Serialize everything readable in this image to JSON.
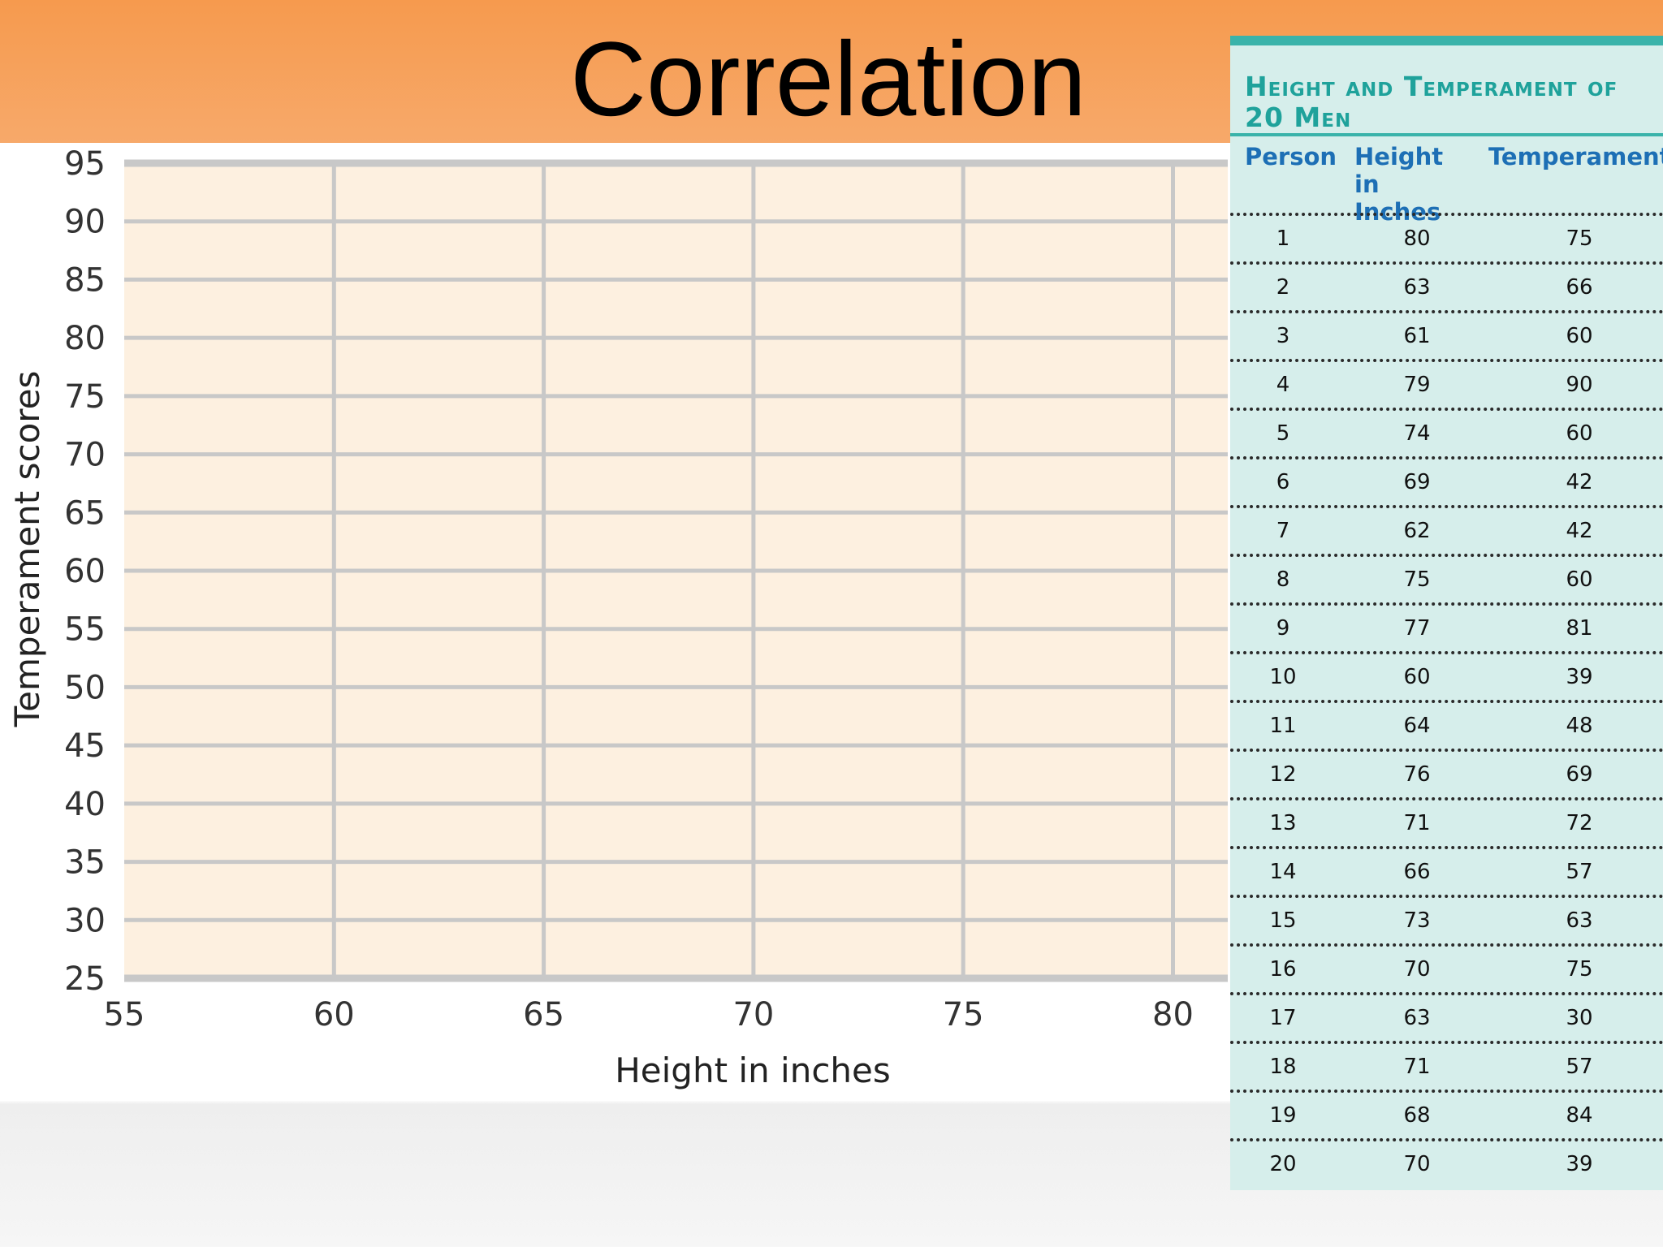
{
  "slide": {
    "title": "Correlation"
  },
  "chart_data": {
    "type": "scatter",
    "title": "",
    "xlabel": "Height in inches",
    "ylabel": "Temperament scores",
    "xlim": [
      55,
      80
    ],
    "ylim": [
      25,
      95
    ],
    "x_ticks": [
      "55",
      "60",
      "65",
      "70",
      "75",
      "80"
    ],
    "y_ticks": [
      "95",
      "90",
      "85",
      "80",
      "75",
      "70",
      "65",
      "60",
      "55",
      "50",
      "45",
      "40",
      "35",
      "30",
      "25"
    ],
    "grid": true,
    "plot_background": "#fdf0e0",
    "gridline_color": "#c8c8c8",
    "points": []
  },
  "table": {
    "title": "Height and Temperament of 20 Men",
    "headers": [
      "Person",
      "Height in Inches",
      "Temperament"
    ],
    "rows": [
      [
        "1",
        "80",
        "75"
      ],
      [
        "2",
        "63",
        "66"
      ],
      [
        "3",
        "61",
        "60"
      ],
      [
        "4",
        "79",
        "90"
      ],
      [
        "5",
        "74",
        "60"
      ],
      [
        "6",
        "69",
        "42"
      ],
      [
        "7",
        "62",
        "42"
      ],
      [
        "8",
        "75",
        "60"
      ],
      [
        "9",
        "77",
        "81"
      ],
      [
        "10",
        "60",
        "39"
      ],
      [
        "11",
        "64",
        "48"
      ],
      [
        "12",
        "76",
        "69"
      ],
      [
        "13",
        "71",
        "72"
      ],
      [
        "14",
        "66",
        "57"
      ],
      [
        "15",
        "73",
        "63"
      ],
      [
        "16",
        "70",
        "75"
      ],
      [
        "17",
        "63",
        "30"
      ],
      [
        "18",
        "71",
        "57"
      ],
      [
        "19",
        "68",
        "84"
      ],
      [
        "20",
        "70",
        "39"
      ]
    ]
  },
  "colors": {
    "header_band": "#f69a4e",
    "table_bg": "#d6eeeb",
    "table_accent": "#3ab3aa",
    "table_title": "#1fa29b",
    "table_header": "#1d6fb5"
  }
}
